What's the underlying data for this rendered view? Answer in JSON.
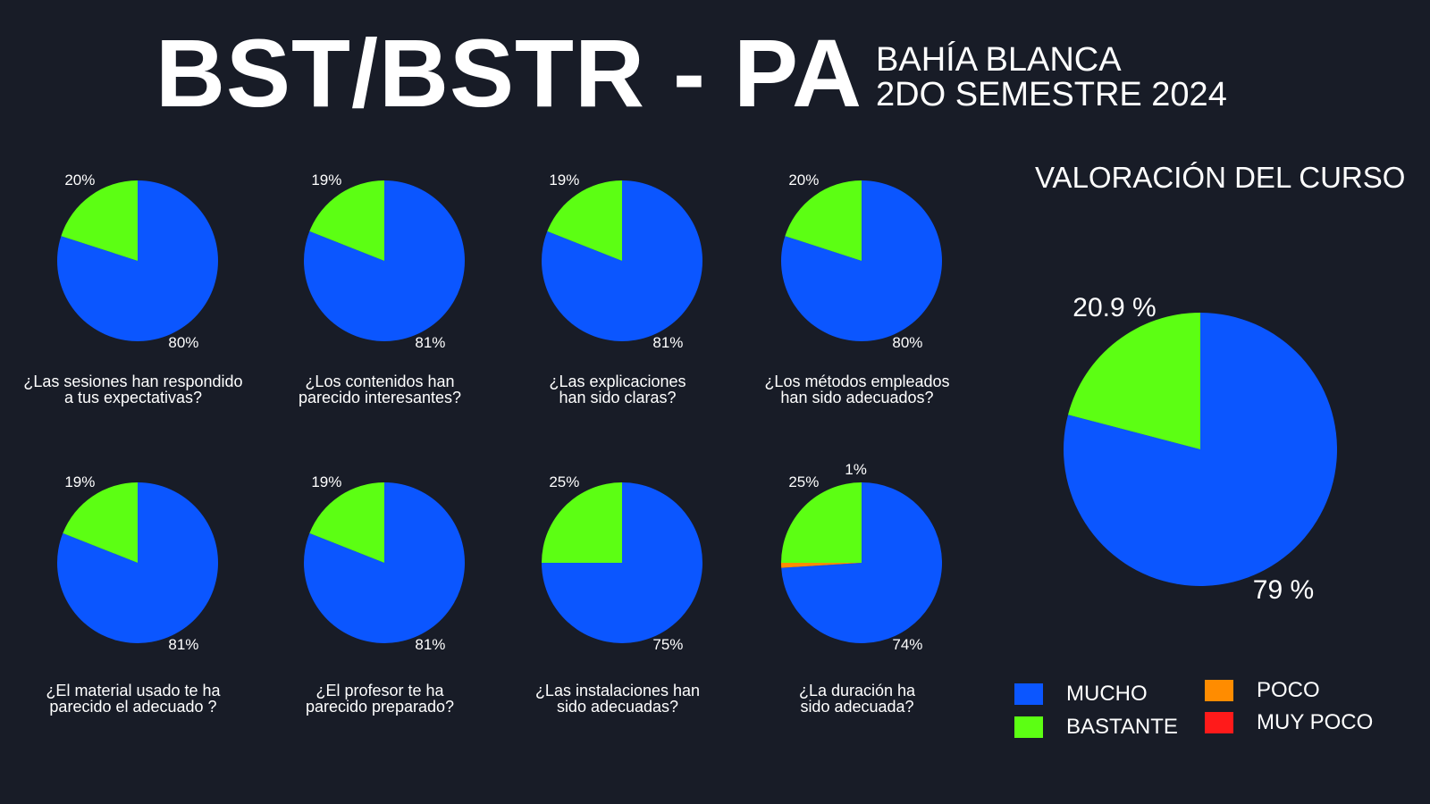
{
  "header": {
    "title": "BST/BSTR - PA",
    "subtitle_line1": "BAHÍA BLANCA",
    "subtitle_line2": "2DO SEMESTRE 2024"
  },
  "colors": {
    "mucho": "#0b56ff",
    "bastante": "#5cff13",
    "poco": "#ff8c00",
    "muy_poco": "#ff1a1a",
    "background": "#181c27"
  },
  "legend": {
    "mucho": "MUCHO",
    "bastante": "BASTANTE",
    "poco": "POCO",
    "muy_poco": "MUY POCO"
  },
  "chart_data": [
    {
      "type": "pie",
      "title": "¿Las sesiones han respondido\na tus expectativas?",
      "categories": [
        "MUCHO",
        "BASTANTE"
      ],
      "values": [
        80,
        20
      ],
      "labels": [
        "80%",
        "20%"
      ]
    },
    {
      "type": "pie",
      "title": "¿Los contenidos han\nparecido interesantes?",
      "categories": [
        "MUCHO",
        "BASTANTE"
      ],
      "values": [
        81,
        19
      ],
      "labels": [
        "81%",
        "19%"
      ]
    },
    {
      "type": "pie",
      "title": "¿Las explicaciones\nhan sido claras?",
      "categories": [
        "MUCHO",
        "BASTANTE"
      ],
      "values": [
        81,
        19
      ],
      "labels": [
        "81%",
        "19%"
      ]
    },
    {
      "type": "pie",
      "title": "¿Los métodos empleados\nhan sido adecuados?",
      "categories": [
        "MUCHO",
        "BASTANTE"
      ],
      "values": [
        80,
        20
      ],
      "labels": [
        "80%",
        "20%"
      ]
    },
    {
      "type": "pie",
      "title": "¿El material usado te ha\nparecido el adecuado ?",
      "categories": [
        "MUCHO",
        "BASTANTE"
      ],
      "values": [
        81,
        19
      ],
      "labels": [
        "81%",
        "19%"
      ]
    },
    {
      "type": "pie",
      "title": "¿El profesor te ha\nparecido preparado?",
      "categories": [
        "MUCHO",
        "BASTANTE"
      ],
      "values": [
        81,
        19
      ],
      "labels": [
        "81%",
        "19%"
      ]
    },
    {
      "type": "pie",
      "title": "¿Las instalaciones han\nsido adecuadas?",
      "categories": [
        "MUCHO",
        "BASTANTE"
      ],
      "values": [
        75,
        25
      ],
      "labels": [
        "75%",
        "25%"
      ]
    },
    {
      "type": "pie",
      "title": "¿La duración ha\nsido adecuada?",
      "categories": [
        "MUCHO",
        "BASTANTE",
        "POCO"
      ],
      "values": [
        74,
        25,
        1
      ],
      "labels": [
        "74%",
        "25%",
        "1%"
      ]
    },
    {
      "type": "pie",
      "title": "VALORACIÓN DEL CURSO",
      "categories": [
        "MUCHO",
        "BASTANTE"
      ],
      "values": [
        79,
        20.9
      ],
      "labels": [
        "79 %",
        "20.9 %"
      ]
    }
  ]
}
